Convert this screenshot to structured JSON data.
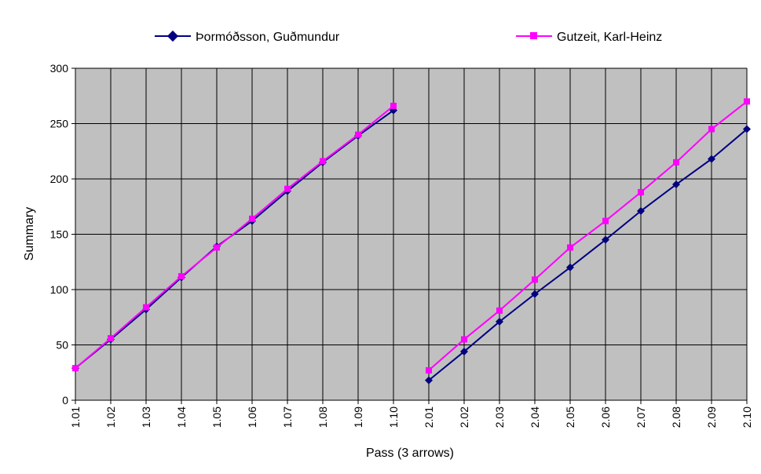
{
  "chart_data": {
    "type": "line",
    "title": "",
    "xlabel": "Pass (3 arrows)",
    "ylabel": "Summary",
    "ylim": [
      0,
      300
    ],
    "yticks": [
      "0",
      "50",
      "100",
      "150",
      "200",
      "250",
      "300"
    ],
    "categories": [
      "1.01",
      "1.02",
      "1.03",
      "1.04",
      "1.05",
      "1.06",
      "1.07",
      "1.08",
      "1.09",
      "1.10",
      "2.01",
      "2.02",
      "2.03",
      "2.04",
      "2.05",
      "2.06",
      "2.07",
      "2.08",
      "2.09",
      "2.10"
    ],
    "grid": true,
    "legend_position": "top",
    "plot_background": "#C0C0C0",
    "series": [
      {
        "name": "Þormóðsson, Guðmundur",
        "color": "#000080",
        "marker": "diamond",
        "values": [
          29,
          55,
          82,
          111,
          139,
          162,
          189,
          215,
          239,
          262,
          18,
          44,
          71,
          96,
          120,
          145,
          171,
          195,
          218,
          245
        ]
      },
      {
        "name": "Gutzeit, Karl-Heinz",
        "color": "#FF00FF",
        "marker": "square",
        "values": [
          29,
          56,
          84,
          112,
          138,
          164,
          191,
          216,
          240,
          266,
          27,
          55,
          81,
          109,
          138,
          162,
          188,
          215,
          245,
          270
        ]
      }
    ]
  }
}
